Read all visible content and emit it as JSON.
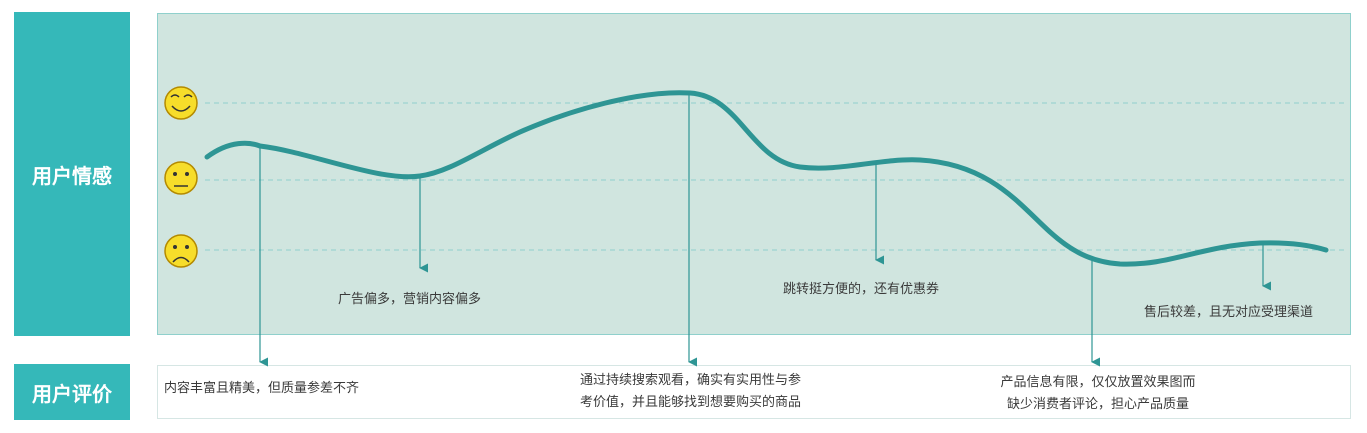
{
  "labels": {
    "emotion": "用户情感",
    "review": "用户评价"
  },
  "emotion_levels": [
    {
      "name": "happy",
      "icon": "happy-face-icon"
    },
    {
      "name": "neutral",
      "icon": "neutral-face-icon"
    },
    {
      "name": "sad",
      "icon": "sad-face-icon"
    }
  ],
  "emotion_notes": [
    "广告偏多，营销内容偏多",
    "跳转挺方便的，还有优惠券",
    "售后较差，且无对应受理渠道"
  ],
  "reviews": [
    {
      "line1": "内容丰富且精美，但质量参差不齐",
      "line2": ""
    },
    {
      "line1": "通过持续搜索观看，确实有实用性与参",
      "line2": "考价值，并且能够找到想要购买的商品"
    },
    {
      "line1": "产品信息有限，仅仅放置效果图而",
      "line2": "缺少消费者评论，担心产品质量"
    }
  ],
  "colors": {
    "accent": "#35b8b9",
    "curve": "#2e9594",
    "panel_bg": "#d0e5df",
    "face": "#f7dd2a"
  }
}
